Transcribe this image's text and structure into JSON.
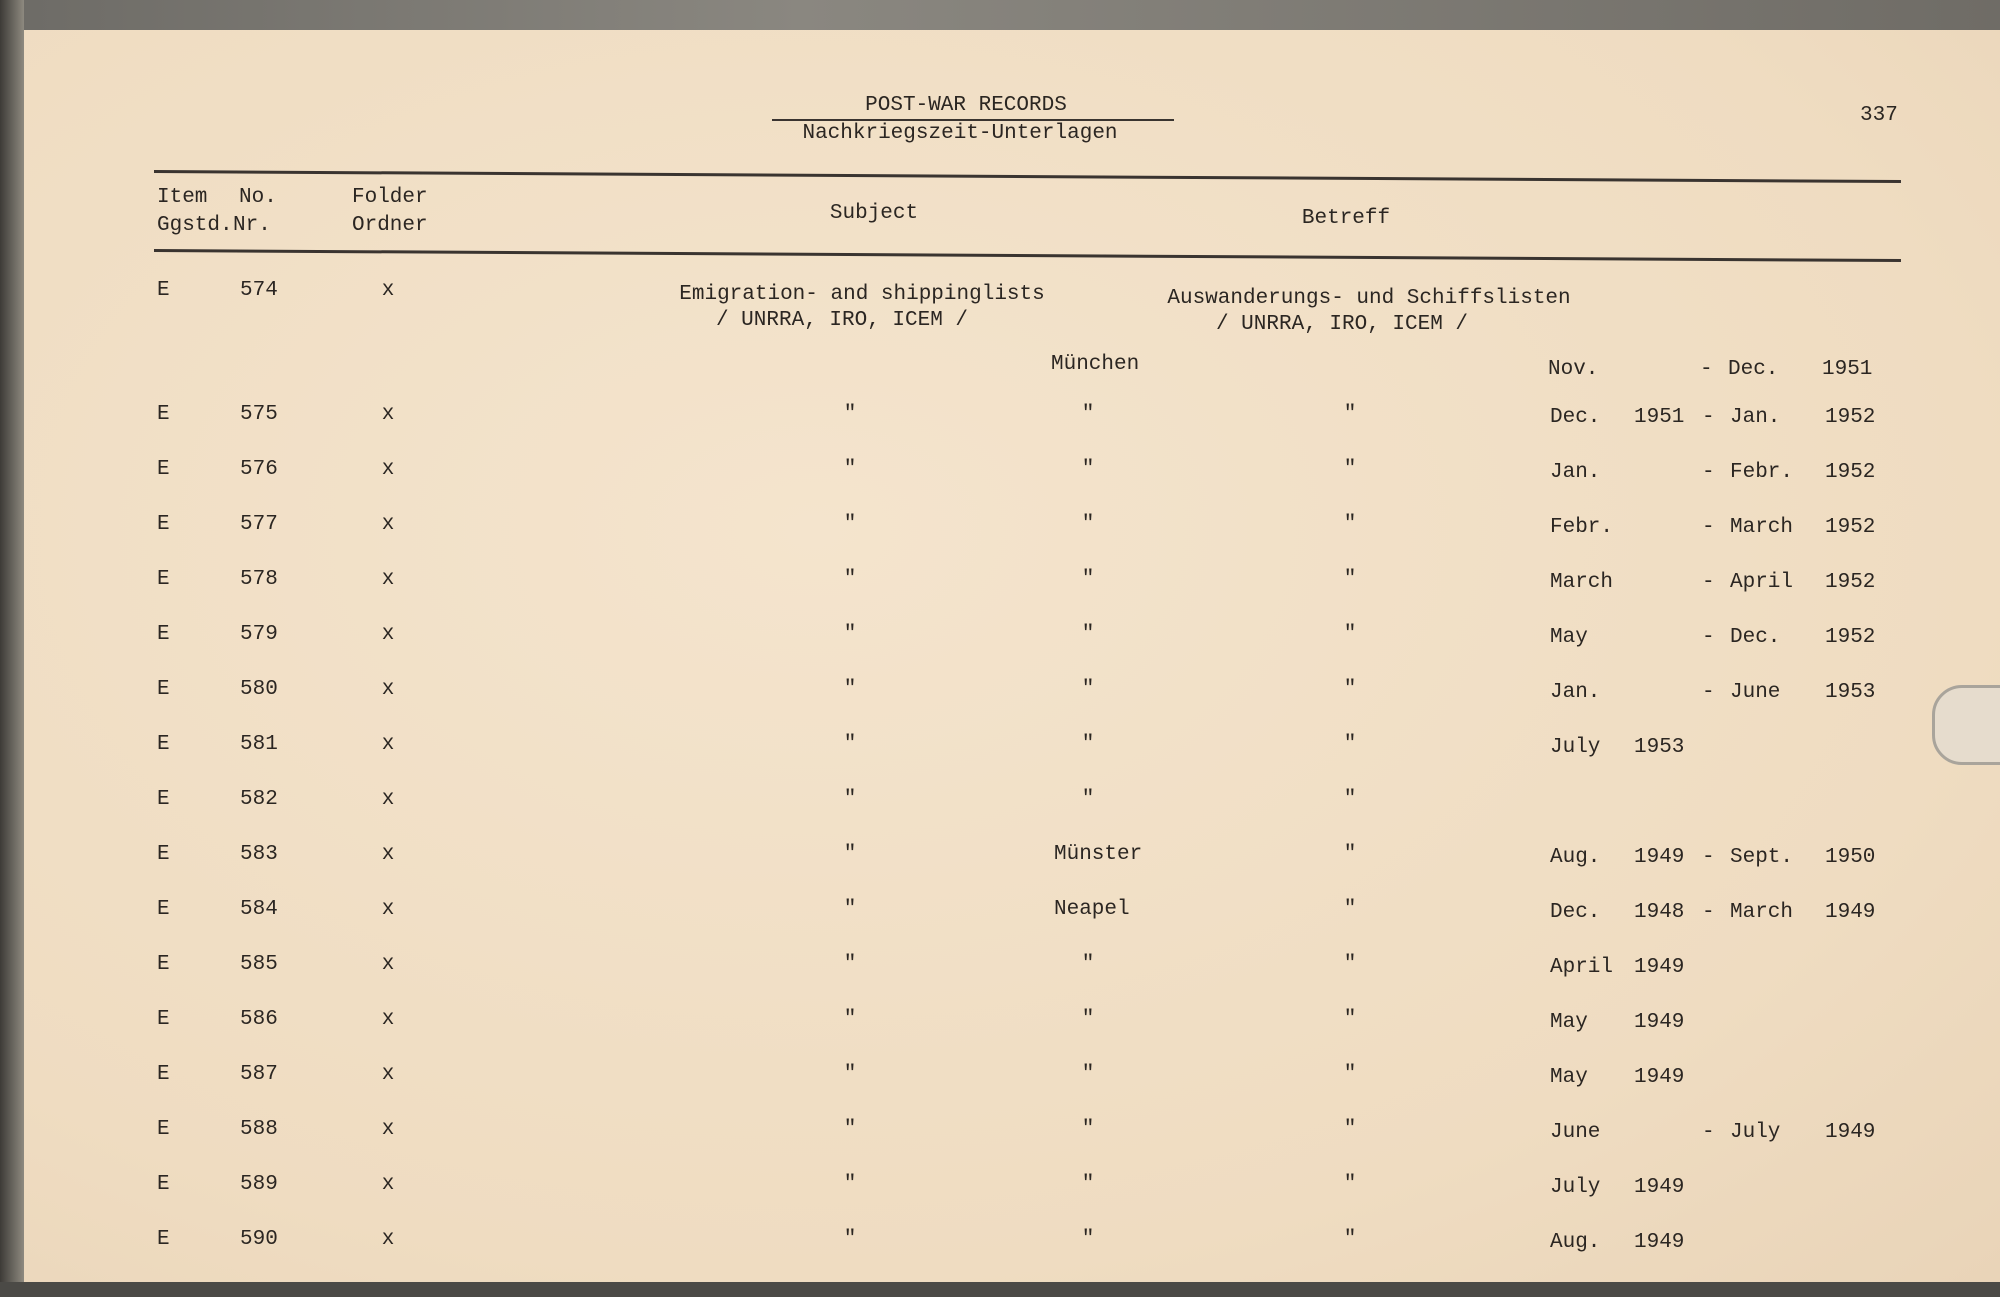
{
  "header": {
    "title": "POST-WAR RECORDS",
    "subtitle": "Nachkriegszeit-Unterlagen",
    "page_number": "337"
  },
  "columns": {
    "item": "Item",
    "item_de": "Ggstd.",
    "no": "No.",
    "no_de": "Nr.",
    "folder": "Folder",
    "folder_de": "Ordner",
    "subject": "Subject",
    "betreff": "Betreff"
  },
  "first_entry": {
    "item": "E",
    "no": "574",
    "folder": "x",
    "subject": "Emigration- and shippinglists",
    "subject_sub": "/ UNRRA, IRO, ICEM /",
    "betreff": "Auswanderungs- und Schiffslisten",
    "betreff_sub": "/ UNRRA, IRO, ICEM /",
    "place": "München",
    "from_month": "Nov.",
    "from_year": "",
    "dash": "-",
    "to_month": "Dec.",
    "to_year": "1951"
  },
  "rows": [
    {
      "item": "E",
      "no": "575",
      "folder": "x",
      "subject": "\"",
      "place": "\"",
      "betreff": "\"",
      "from_month": "Dec.",
      "from_year": "1951",
      "dash": "-",
      "to_month": "Jan.",
      "to_year": "1952"
    },
    {
      "item": "E",
      "no": "576",
      "folder": "x",
      "subject": "\"",
      "place": "\"",
      "betreff": "\"",
      "from_month": "Jan.",
      "from_year": "",
      "dash": "-",
      "to_month": "Febr.",
      "to_year": "1952"
    },
    {
      "item": "E",
      "no": "577",
      "folder": "x",
      "subject": "\"",
      "place": "\"",
      "betreff": "\"",
      "from_month": "Febr.",
      "from_year": "",
      "dash": "-",
      "to_month": "March",
      "to_year": "1952"
    },
    {
      "item": "E",
      "no": "578",
      "folder": "x",
      "subject": "\"",
      "place": "\"",
      "betreff": "\"",
      "from_month": "March",
      "from_year": "",
      "dash": "-",
      "to_month": "April",
      "to_year": "1952"
    },
    {
      "item": "E",
      "no": "579",
      "folder": "x",
      "subject": "\"",
      "place": "\"",
      "betreff": "\"",
      "from_month": "May",
      "from_year": "",
      "dash": "-",
      "to_month": "Dec.",
      "to_year": "1952"
    },
    {
      "item": "E",
      "no": "580",
      "folder": "x",
      "subject": "\"",
      "place": "\"",
      "betreff": "\"",
      "from_month": "Jan.",
      "from_year": "",
      "dash": "-",
      "to_month": "June",
      "to_year": "1953"
    },
    {
      "item": "E",
      "no": "581",
      "folder": "x",
      "subject": "\"",
      "place": "\"",
      "betreff": "\"",
      "from_month": "July",
      "from_year": "1953",
      "dash": "",
      "to_month": "",
      "to_year": ""
    },
    {
      "item": "E",
      "no": "582",
      "folder": "x",
      "subject": "\"",
      "place": "\"",
      "betreff": "\"",
      "from_month": "",
      "from_year": "",
      "dash": "",
      "to_month": "",
      "to_year": ""
    },
    {
      "item": "E",
      "no": "583",
      "folder": "x",
      "subject": "\"",
      "place": "Münster",
      "betreff": "\"",
      "from_month": "Aug.",
      "from_year": "1949",
      "dash": "-",
      "to_month": "Sept.",
      "to_year": "1950"
    },
    {
      "item": "E",
      "no": "584",
      "folder": "x",
      "subject": "\"",
      "place": "Neapel",
      "betreff": "\"",
      "from_month": "Dec.",
      "from_year": "1948",
      "dash": "-",
      "to_month": "March",
      "to_year": "1949"
    },
    {
      "item": "E",
      "no": "585",
      "folder": "x",
      "subject": "\"",
      "place": "\"",
      "betreff": "\"",
      "from_month": "April",
      "from_year": "1949",
      "dash": "",
      "to_month": "",
      "to_year": ""
    },
    {
      "item": "E",
      "no": "586",
      "folder": "x",
      "subject": "\"",
      "place": "\"",
      "betreff": "\"",
      "from_month": "May",
      "from_year": "1949",
      "dash": "",
      "to_month": "",
      "to_year": ""
    },
    {
      "item": "E",
      "no": "587",
      "folder": "x",
      "subject": "\"",
      "place": "\"",
      "betreff": "\"",
      "from_month": "May",
      "from_year": "1949",
      "dash": "",
      "to_month": "",
      "to_year": ""
    },
    {
      "item": "E",
      "no": "588",
      "folder": "x",
      "subject": "\"",
      "place": "\"",
      "betreff": "\"",
      "from_month": "June",
      "from_year": "",
      "dash": "-",
      "to_month": "July",
      "to_year": "1949"
    },
    {
      "item": "E",
      "no": "589",
      "folder": "x",
      "subject": "\"",
      "place": "\"",
      "betreff": "\"",
      "from_month": "July",
      "from_year": "1949",
      "dash": "",
      "to_month": "",
      "to_year": ""
    },
    {
      "item": "E",
      "no": "590",
      "folder": "x",
      "subject": "\"",
      "place": "\"",
      "betreff": "\"",
      "from_month": "Aug.",
      "from_year": "1949",
      "dash": "",
      "to_month": "",
      "to_year": ""
    }
  ]
}
